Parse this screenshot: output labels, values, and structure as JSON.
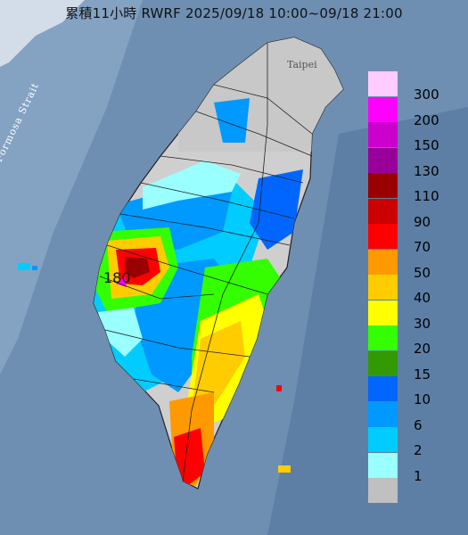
{
  "title": "累積11小時 RWRF 2025/09/18 10:00~09/18 21:00",
  "labels": {
    "strait": "Formosa Strait",
    "taipei": "Taipei",
    "max_value": "180"
  },
  "legend": [
    {
      "label": "300",
      "color": "#ffccff"
    },
    {
      "label": "200",
      "color": "#ff00ff"
    },
    {
      "label": "150",
      "color": "#cc00cc"
    },
    {
      "label": "130",
      "color": "#990099"
    },
    {
      "label": "110",
      "color": "#990000"
    },
    {
      "label": "90",
      "color": "#cc0000"
    },
    {
      "label": "70",
      "color": "#ff0000"
    },
    {
      "label": "50",
      "color": "#ff9900"
    },
    {
      "label": "40",
      "color": "#ffcc00"
    },
    {
      "label": "30",
      "color": "#ffff00"
    },
    {
      "label": "20",
      "color": "#33ff00"
    },
    {
      "label": "15",
      "color": "#339900"
    },
    {
      "label": "10",
      "color": "#0066ff"
    },
    {
      "label": "6",
      "color": "#0099ff"
    },
    {
      "label": "2",
      "color": "#00ccff"
    },
    {
      "label": "1",
      "color": "#99ffff"
    },
    {
      "label": "",
      "color": "#c0c0c0"
    }
  ]
}
